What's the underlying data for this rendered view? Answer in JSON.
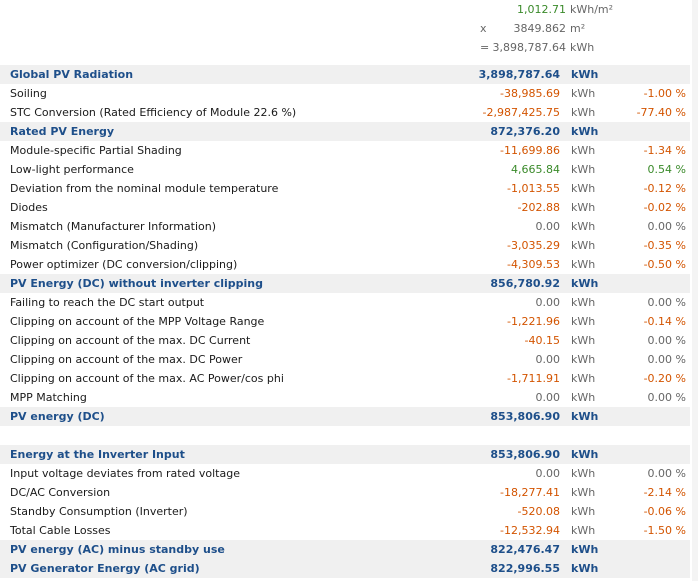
{
  "header": {
    "irradiance": {
      "value": "1,012.71",
      "unit": "kWh/m²"
    },
    "area": {
      "op": "x",
      "value": "3849.862",
      "unit": "m²"
    },
    "total": {
      "op": "=",
      "value": "3,898,787.64",
      "unit": "kWh"
    }
  },
  "rows": [
    {
      "label": "Global PV Radiation",
      "value": "3,898,787.64",
      "unit": "kWh",
      "pct": "",
      "kind": "header"
    },
    {
      "label": "Soiling",
      "value": "-38,985.69",
      "unit": "kWh",
      "pct": "-1.00 %",
      "kind": "neg"
    },
    {
      "label": "STC Conversion (Rated Efficiency of Module 22.6 %)",
      "value": "-2,987,425.75",
      "unit": "kWh",
      "pct": "-77.40 %",
      "kind": "neg"
    },
    {
      "label": "Rated PV Energy",
      "value": "872,376.20",
      "unit": "kWh",
      "pct": "",
      "kind": "header"
    },
    {
      "label": "Module-specific Partial Shading",
      "value": "-11,699.86",
      "unit": "kWh",
      "pct": "-1.34 %",
      "kind": "neg"
    },
    {
      "label": "Low-light performance",
      "value": "4,665.84",
      "unit": "kWh",
      "pct": "0.54 %",
      "kind": "pos"
    },
    {
      "label": "Deviation from the nominal module temperature",
      "value": "-1,013.55",
      "unit": "kWh",
      "pct": "-0.12 %",
      "kind": "neg"
    },
    {
      "label": "Diodes",
      "value": "-202.88",
      "unit": "kWh",
      "pct": "-0.02 %",
      "kind": "neg"
    },
    {
      "label": "Mismatch (Manufacturer Information)",
      "value": "0.00",
      "unit": "kWh",
      "pct": "0.00 %",
      "kind": "zero"
    },
    {
      "label": "Mismatch (Configuration/Shading)",
      "value": "-3,035.29",
      "unit": "kWh",
      "pct": "-0.35 %",
      "kind": "neg"
    },
    {
      "label": "Power optimizer (DC conversion/clipping)",
      "value": "-4,309.53",
      "unit": "kWh",
      "pct": "-0.50 %",
      "kind": "neg"
    },
    {
      "label": "PV Energy (DC) without inverter clipping",
      "value": "856,780.92",
      "unit": "kWh",
      "pct": "",
      "kind": "header"
    },
    {
      "label": "Failing to reach the DC start output",
      "value": "0.00",
      "unit": "kWh",
      "pct": "0.00 %",
      "kind": "zero"
    },
    {
      "label": "Clipping on account of the MPP Voltage Range",
      "value": "-1,221.96",
      "unit": "kWh",
      "pct": "-0.14 %",
      "kind": "neg"
    },
    {
      "label": "Clipping on account of the max. DC Current",
      "value": "-40.15",
      "unit": "kWh",
      "pct": "0.00 %",
      "kind": "neg"
    },
    {
      "label": "Clipping on account of the max. DC Power",
      "value": "0.00",
      "unit": "kWh",
      "pct": "0.00 %",
      "kind": "zero"
    },
    {
      "label": "Clipping on account of the max. AC Power/cos phi",
      "value": "-1,711.91",
      "unit": "kWh",
      "pct": "-0.20 %",
      "kind": "neg"
    },
    {
      "label": "MPP Matching",
      "value": "0.00",
      "unit": "kWh",
      "pct": "0.00 %",
      "kind": "zero"
    },
    {
      "label": "PV energy (DC)",
      "value": "853,806.90",
      "unit": "kWh",
      "pct": "",
      "kind": "header"
    },
    {
      "label": "",
      "value": "",
      "unit": "",
      "pct": "",
      "kind": "blank"
    },
    {
      "label": "Energy at the Inverter Input",
      "value": "853,806.90",
      "unit": "kWh",
      "pct": "",
      "kind": "header"
    },
    {
      "label": "Input voltage deviates from rated voltage",
      "value": "0.00",
      "unit": "kWh",
      "pct": "0.00 %",
      "kind": "zero"
    },
    {
      "label": "DC/AC Conversion",
      "value": "-18,277.41",
      "unit": "kWh",
      "pct": "-2.14 %",
      "kind": "neg"
    },
    {
      "label": "Standby Consumption (Inverter)",
      "value": "-520.08",
      "unit": "kWh",
      "pct": "-0.06 %",
      "kind": "neg"
    },
    {
      "label": "Total Cable Losses",
      "value": "-12,532.94",
      "unit": "kWh",
      "pct": "-1.50 %",
      "kind": "neg"
    },
    {
      "label": "PV energy (AC) minus standby use",
      "value": "822,476.47",
      "unit": "kWh",
      "pct": "",
      "kind": "header"
    },
    {
      "label": "PV Generator Energy (AC grid)",
      "value": "822,996.55",
      "unit": "kWh",
      "pct": "",
      "kind": "header"
    }
  ]
}
